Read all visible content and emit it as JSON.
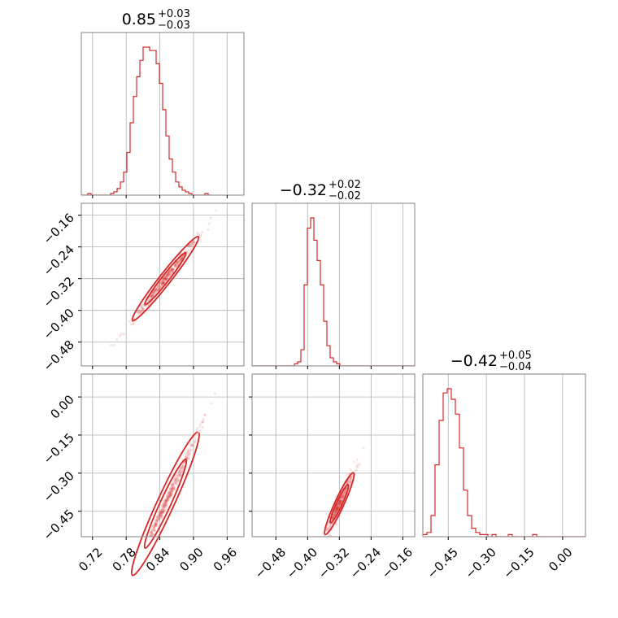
{
  "chart_data": {
    "type": "corner",
    "color": "#d62728",
    "grid": true,
    "parameters": [
      {
        "title_value": "0.85",
        "title_plus": "+0.03",
        "title_minus": "−0.03",
        "range": [
          0.7,
          0.99
        ],
        "ticks": [
          0.72,
          0.78,
          0.84,
          0.9,
          0.96
        ],
        "tick_labels": [
          "0.72",
          "0.78",
          "0.84",
          "0.90",
          "0.96"
        ]
      },
      {
        "title_value": "−0.32",
        "title_plus": "+0.02",
        "title_minus": "−0.02",
        "range": [
          -0.54,
          -0.13
        ],
        "ticks": [
          -0.48,
          -0.4,
          -0.32,
          -0.24,
          -0.16
        ],
        "tick_labels": [
          "−0.48",
          "−0.40",
          "−0.32",
          "−0.24",
          "−0.16"
        ]
      },
      {
        "title_value": "−0.42",
        "title_plus": "+0.05",
        "title_minus": "−0.04",
        "range": [
          -0.55,
          0.09
        ],
        "ticks": [
          -0.45,
          -0.3,
          -0.15,
          0.0
        ],
        "tick_labels": [
          "−0.45",
          "−0.30",
          "−0.15",
          "0.00"
        ]
      }
    ],
    "histograms": [
      {
        "param": 0,
        "bin_start": 0.7,
        "bin_width": 0.0058,
        "counts": [
          0,
          0,
          1,
          0,
          0,
          0,
          0,
          0,
          0,
          1,
          2,
          4,
          8,
          14,
          26,
          44,
          60,
          72,
          82,
          90,
          90,
          88,
          88,
          80,
          68,
          52,
          36,
          22,
          14,
          8,
          5,
          3,
          2,
          1,
          0,
          0,
          0,
          0,
          1,
          0
        ]
      },
      {
        "param": 1,
        "bin_start": -0.54,
        "bin_width": 0.0082,
        "counts": [
          0,
          0,
          0,
          0,
          0,
          0,
          0,
          0,
          0,
          0,
          0,
          0,
          0,
          1,
          2,
          8,
          40,
          68,
          73,
          62,
          52,
          40,
          22,
          10,
          4,
          2,
          1,
          0,
          0,
          0,
          0,
          0,
          0,
          0,
          0,
          0,
          0,
          0,
          0,
          0,
          0,
          0,
          0,
          0,
          0,
          0,
          0,
          0,
          0,
          0
        ]
      },
      {
        "param": 2,
        "bin_start": -0.55,
        "bin_width": 0.016,
        "counts": [
          1,
          2,
          10,
          34,
          55,
          68,
          70,
          65,
          58,
          42,
          22,
          10,
          4,
          2,
          1,
          1,
          0,
          1,
          0,
          0,
          0,
          1,
          0,
          0,
          0,
          0,
          0,
          1,
          0,
          0,
          0,
          0,
          0,
          0,
          0,
          0,
          0,
          0,
          0,
          0
        ]
      }
    ],
    "pairs": [
      {
        "x_param": 0,
        "y_param": 1,
        "slope": 1.8,
        "center": [
          0.85,
          -0.32
        ],
        "sx": 0.028,
        "scatter": 0.007
      },
      {
        "x_param": 0,
        "y_param": 2,
        "slope": 4.8,
        "center": [
          0.85,
          -0.42
        ],
        "sx": 0.028,
        "scatter": 0.012
      },
      {
        "x_param": 1,
        "y_param": 2,
        "slope": 3.4,
        "center": [
          -0.32,
          -0.42
        ],
        "sx": 0.017,
        "scatter": 0.018
      }
    ]
  }
}
